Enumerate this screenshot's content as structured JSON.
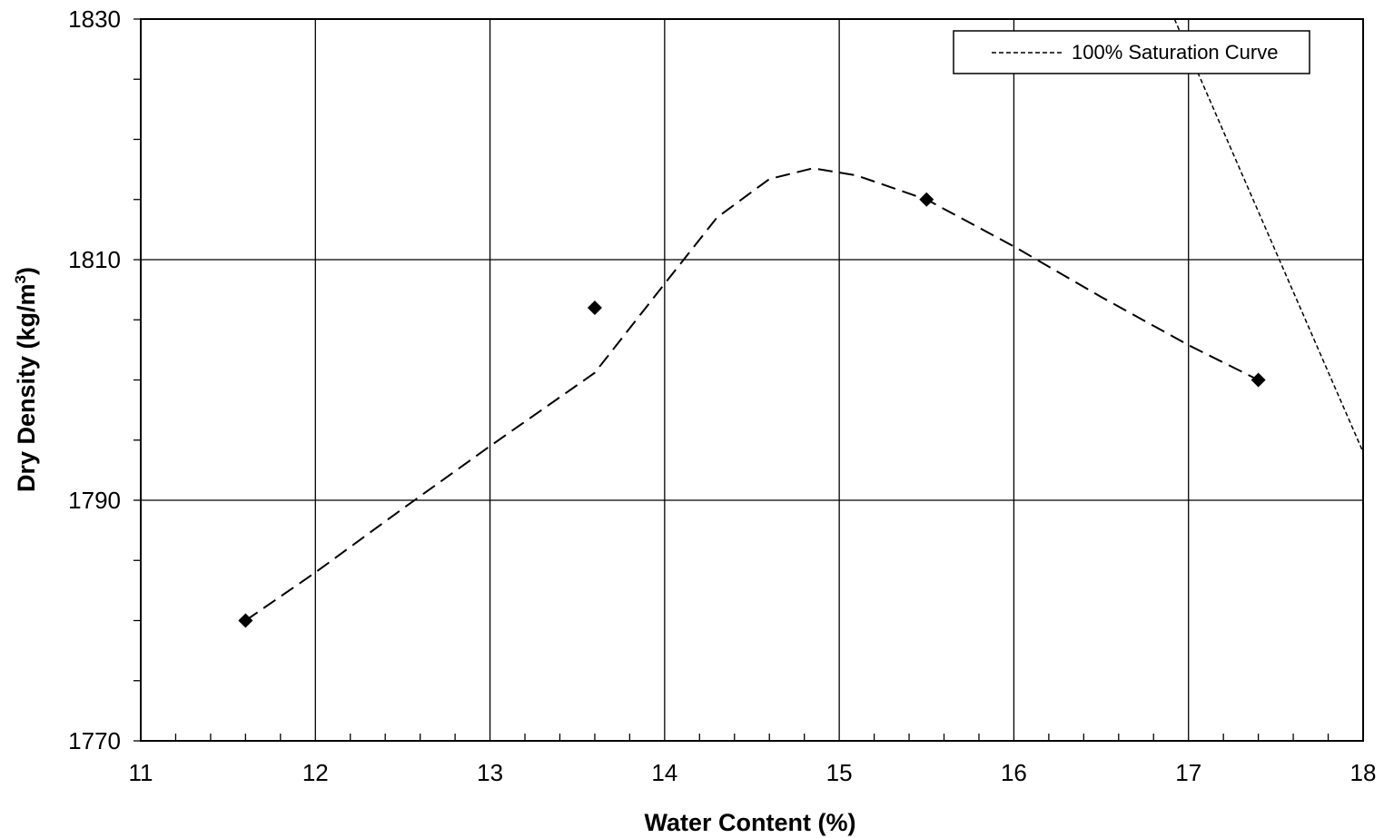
{
  "chart_data": {
    "type": "scatter",
    "xlabel": "Water Content (%)",
    "ylabel": "Dry Density (kg/m",
    "ylabel_sup": "3",
    "ylabel_close": ")",
    "xlim": [
      11,
      18
    ],
    "ylim": [
      1770,
      1830
    ],
    "x_ticks": [
      11,
      12,
      13,
      14,
      15,
      16,
      17,
      18
    ],
    "x_tick_labels": [
      "11",
      "12",
      "13",
      "14",
      "15",
      "16",
      "17",
      "18"
    ],
    "y_ticks": [
      1770,
      1790,
      1810,
      1830
    ],
    "y_tick_labels": [
      "1770",
      "1790",
      "1810",
      "1830"
    ],
    "y_minor_step": 5,
    "x_minor_step": 0.2,
    "grid": true,
    "legend_position": "top-right",
    "legend_label": "100% Saturation Curve",
    "series": [
      {
        "marker": "diamond",
        "x": [
          11.6,
          13.6,
          15.5,
          17.4
        ],
        "y": [
          1780,
          1806,
          1815,
          1800
        ]
      }
    ],
    "fit_curve": {
      "style": "dashed",
      "x": [
        11.6,
        12.0,
        12.5,
        13.0,
        13.6,
        14.0,
        14.3,
        14.6,
        14.85,
        15.1,
        15.5,
        16.0,
        16.5,
        17.0,
        17.4
      ],
      "y": [
        1780,
        1784,
        1789.3,
        1794.5,
        1800.6,
        1808.0,
        1813.5,
        1816.7,
        1817.6,
        1817.0,
        1815.0,
        1811.1,
        1806.9,
        1802.9,
        1800.0
      ]
    },
    "saturation_curve": {
      "style": "dotted",
      "x": [
        16.92,
        18.0
      ],
      "y": [
        1830,
        1794
      ]
    }
  }
}
